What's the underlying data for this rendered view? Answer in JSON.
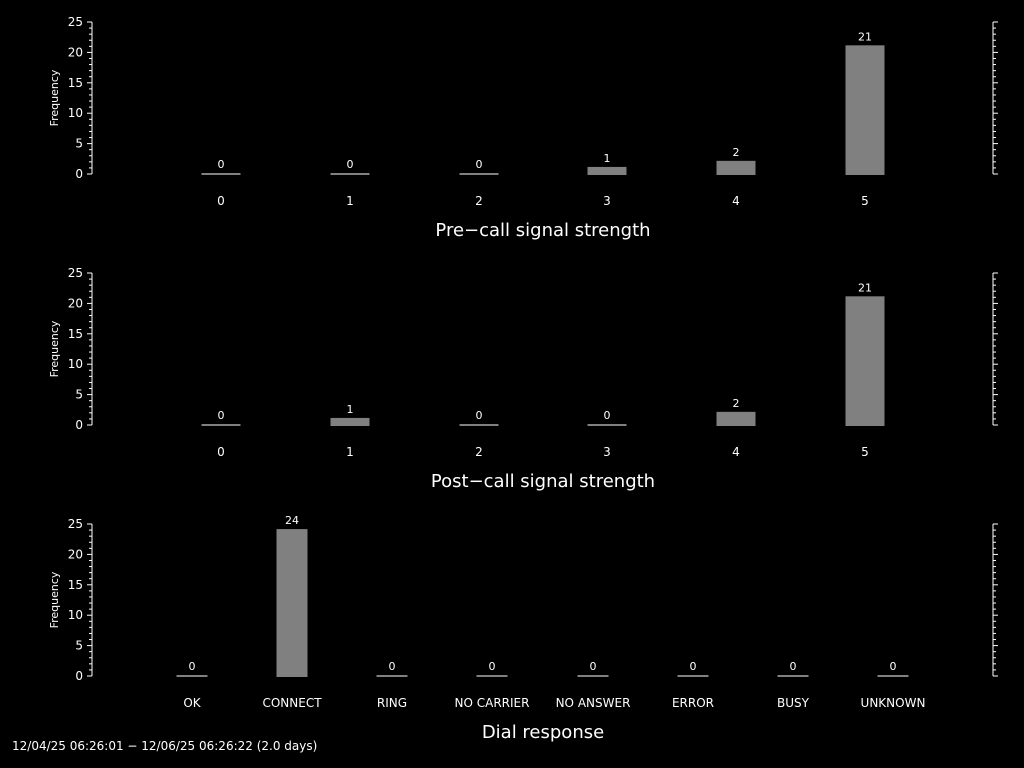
{
  "chart_data": [
    {
      "type": "bar",
      "xlabel": "Pre−call signal strength",
      "ylabel": "Frequency",
      "categories": [
        "0",
        "1",
        "2",
        "3",
        "4",
        "5"
      ],
      "values": [
        0,
        0,
        0,
        1,
        2,
        21
      ],
      "data_labels": [
        "0",
        "0",
        "0",
        "1",
        "2",
        "21"
      ],
      "ylim": [
        0,
        25
      ],
      "yticks": [
        "0",
        "5",
        "10",
        "15",
        "20",
        "25"
      ],
      "bar_color": "#808080"
    },
    {
      "type": "bar",
      "xlabel": "Post−call signal strength",
      "ylabel": "Frequency",
      "categories": [
        "0",
        "1",
        "2",
        "3",
        "4",
        "5"
      ],
      "values": [
        0,
        1,
        0,
        0,
        2,
        21
      ],
      "data_labels": [
        "0",
        "1",
        "0",
        "0",
        "2",
        "21"
      ],
      "ylim": [
        0,
        25
      ],
      "yticks": [
        "0",
        "5",
        "10",
        "15",
        "20",
        "25"
      ],
      "bar_color": "#808080"
    },
    {
      "type": "bar",
      "xlabel": "Dial response",
      "ylabel": "Frequency",
      "categories": [
        "OK",
        "CONNECT",
        "RING",
        "NO CARRIER",
        "NO ANSWER",
        "ERROR",
        "BUSY",
        "UNKNOWN"
      ],
      "values": [
        0,
        24,
        0,
        0,
        0,
        0,
        0,
        0
      ],
      "data_labels": [
        "0",
        "24",
        "0",
        "0",
        "0",
        "0",
        "0",
        "0"
      ],
      "ylim": [
        0,
        25
      ],
      "yticks": [
        "0",
        "5",
        "10",
        "15",
        "20",
        "25"
      ],
      "bar_color": "#808080"
    }
  ],
  "footer": "12/04/25 06:26:01 − 12/06/25 06:26:22 (2.0 days)"
}
